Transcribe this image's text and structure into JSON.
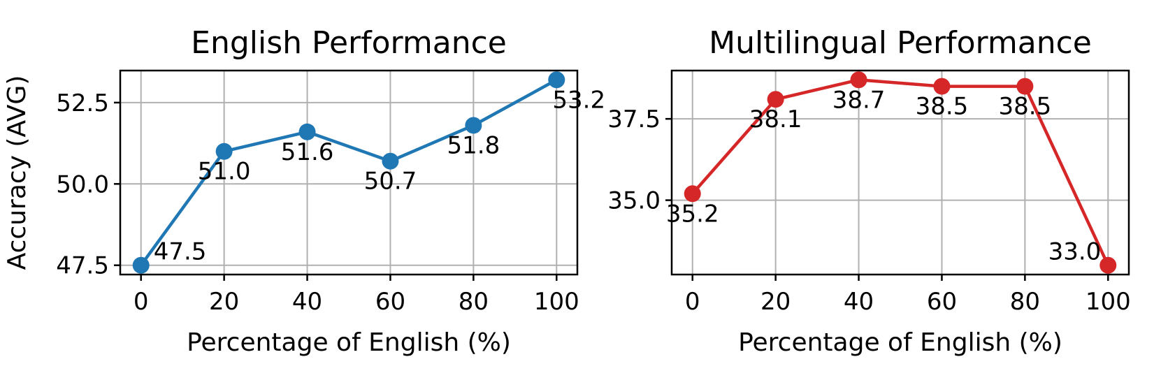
{
  "chart_data": [
    {
      "type": "line",
      "title": "English Performance",
      "xlabel": "Percentage of English (%)",
      "ylabel": "Accuracy (AVG)",
      "x": [
        0,
        20,
        40,
        60,
        80,
        100
      ],
      "series": [
        {
          "values": [
            47.5,
            51.0,
            51.6,
            50.7,
            51.8,
            53.2
          ],
          "color": "#1f77b4"
        }
      ],
      "data_labels": [
        "47.5",
        "51.0",
        "51.6",
        "50.7",
        "51.8",
        "53.2"
      ],
      "xticks": [
        0,
        20,
        40,
        60,
        80,
        100
      ],
      "xtick_labels": [
        "0",
        "20",
        "40",
        "60",
        "80",
        "100"
      ],
      "yticks": [
        47.5,
        50.0,
        52.5
      ],
      "ytick_labels": [
        "47.5",
        "50.0",
        "52.5"
      ],
      "xlim": [
        -5,
        105
      ],
      "ylim": [
        47.215,
        53.485
      ],
      "grid": true
    },
    {
      "type": "line",
      "title": "Multilingual Performance",
      "xlabel": "Percentage of English (%)",
      "ylabel": "",
      "x": [
        0,
        20,
        40,
        60,
        80,
        100
      ],
      "series": [
        {
          "values": [
            35.2,
            38.1,
            38.7,
            38.5,
            38.5,
            33.0
          ],
          "color": "#d62728"
        }
      ],
      "data_labels": [
        "35.2",
        "38.1",
        "38.7",
        "38.5",
        "38.5",
        "33.0"
      ],
      "xticks": [
        0,
        20,
        40,
        60,
        80,
        100
      ],
      "xtick_labels": [
        "0",
        "20",
        "40",
        "60",
        "80",
        "100"
      ],
      "yticks": [
        35.0,
        37.5
      ],
      "ytick_labels": [
        "35.0",
        "37.5"
      ],
      "xlim": [
        -5,
        105
      ],
      "ylim": [
        32.715,
        38.985
      ],
      "grid": true
    }
  ]
}
